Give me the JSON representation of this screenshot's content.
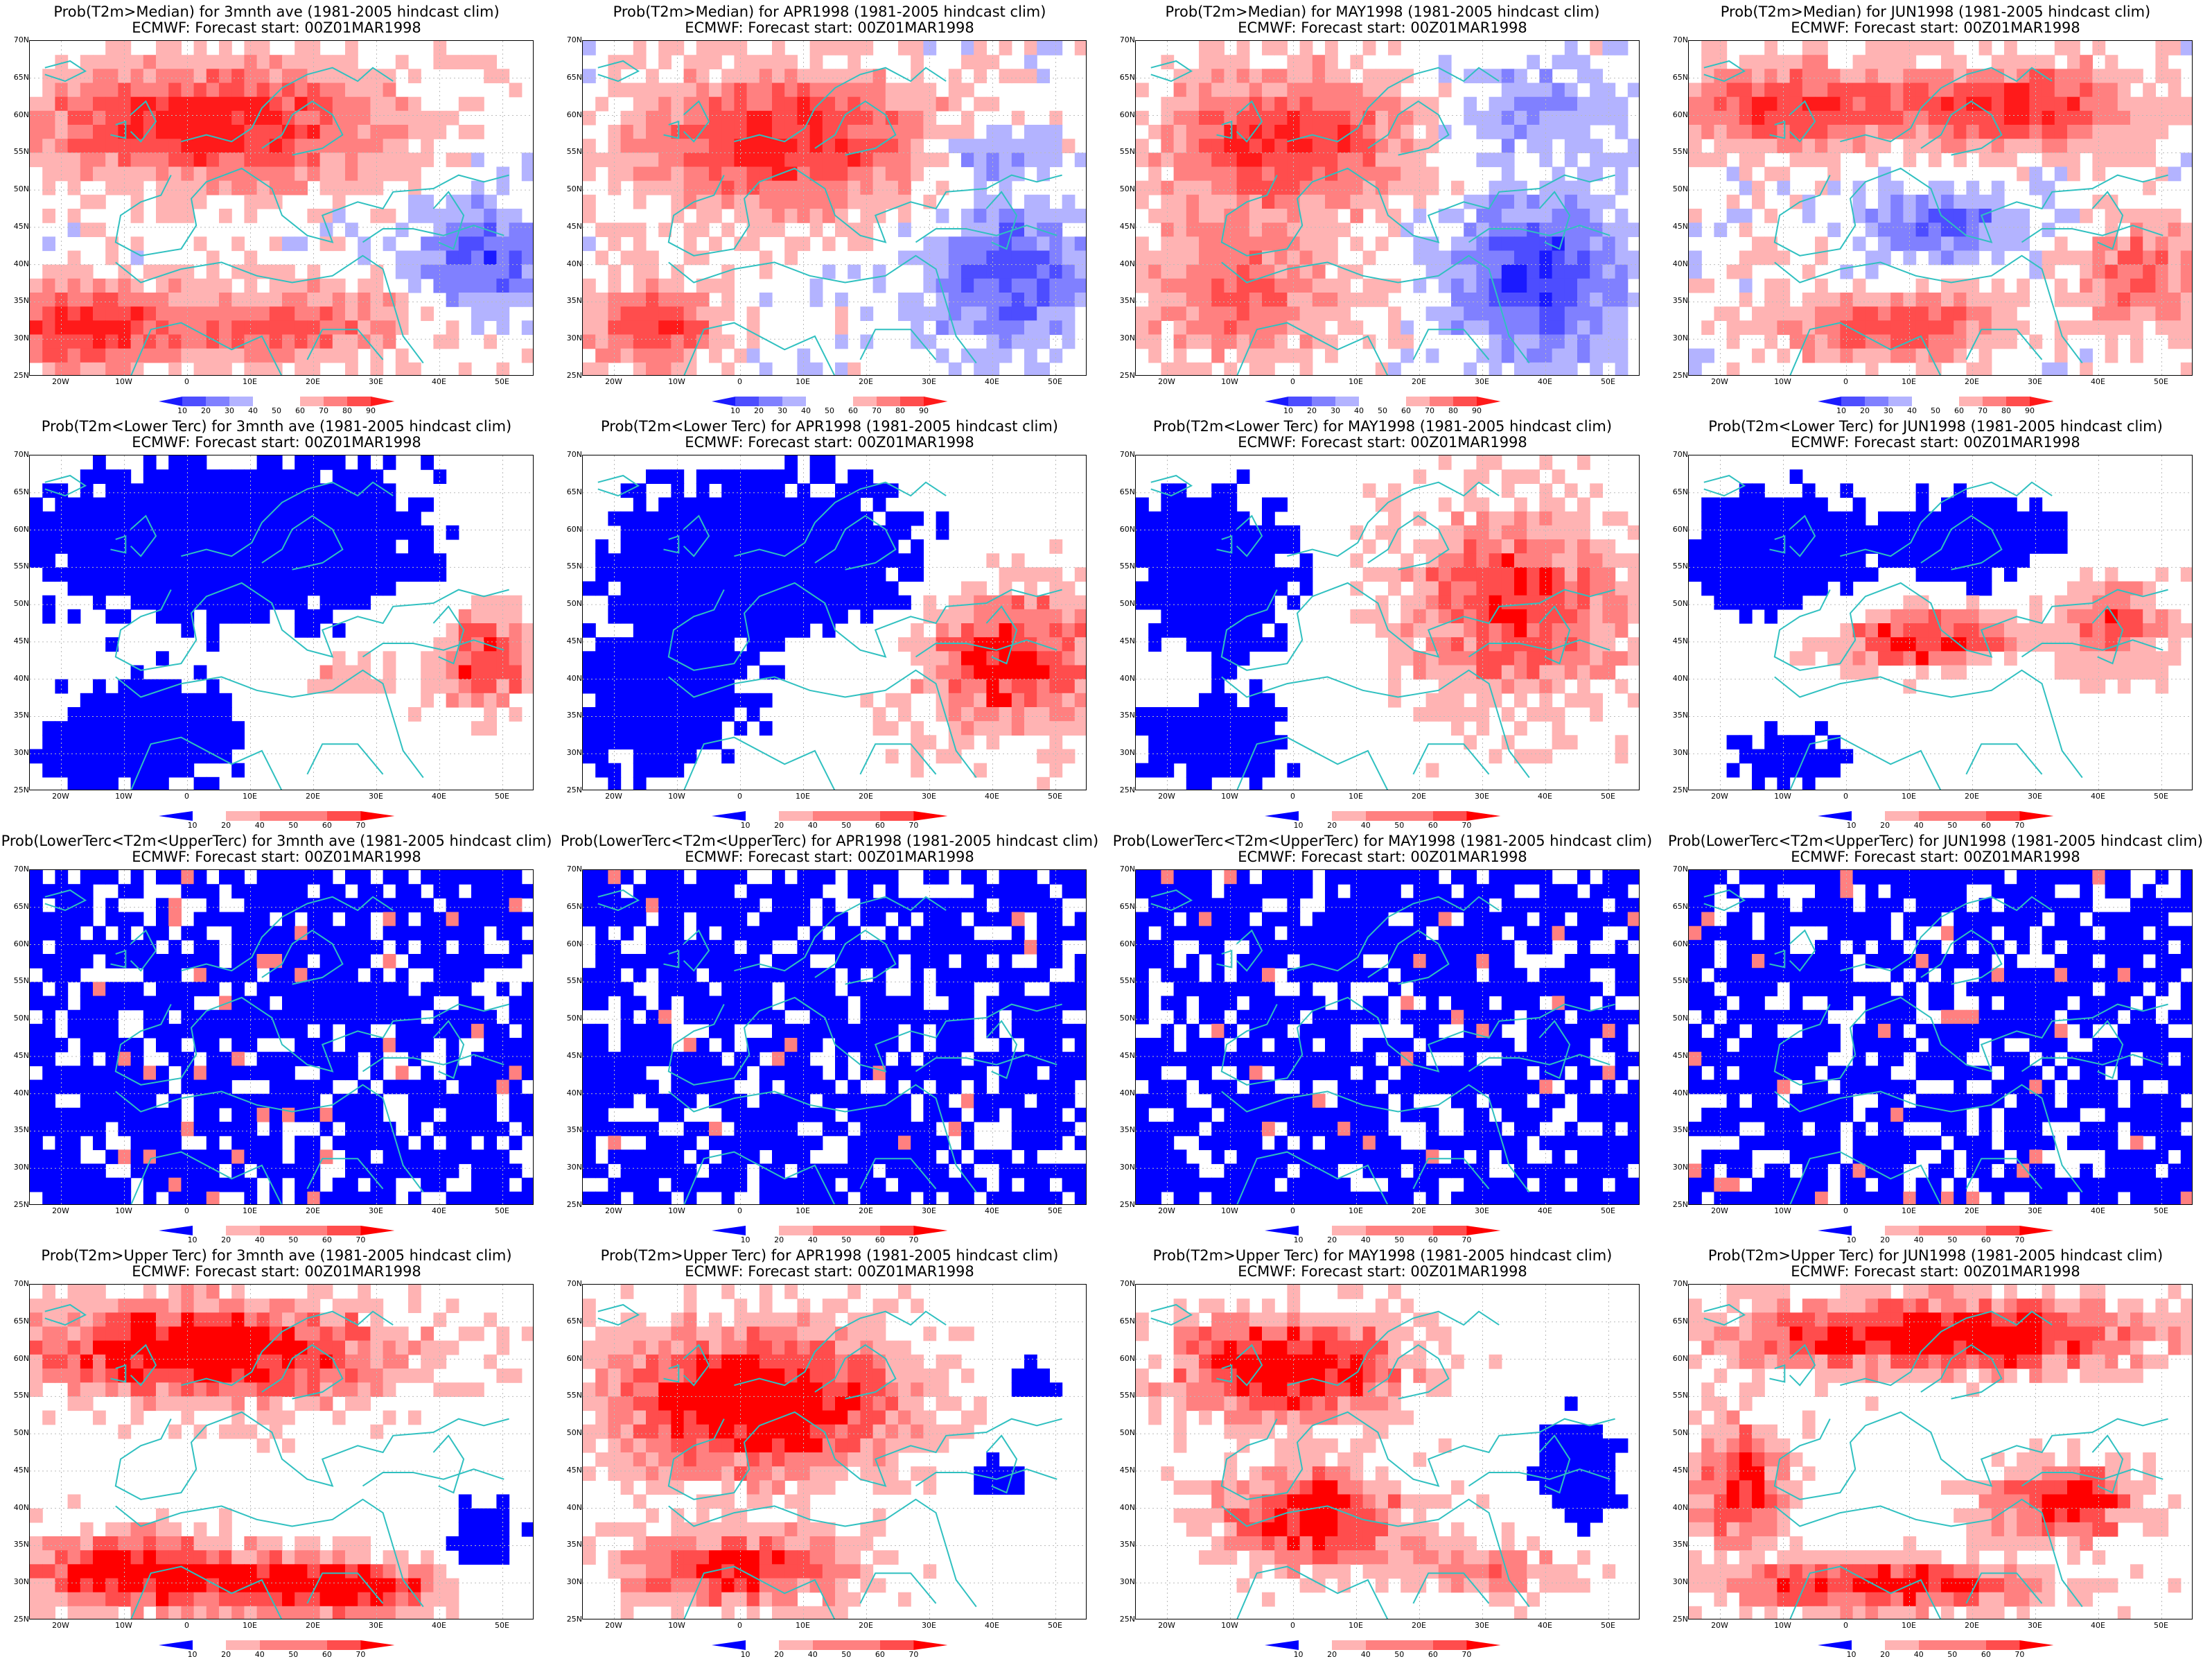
{
  "grid": {
    "rows": [
      {
        "line1_prefix": "Prob(T2m>Median)",
        "scale": "median",
        "colorbar_labels": [
          "10",
          "20",
          "30",
          "40",
          "50",
          "60",
          "70",
          "80",
          "90"
        ]
      },
      {
        "line1_prefix": "Prob(T2m<Lower Terc)",
        "scale": "tercile",
        "colorbar_labels": [
          "10",
          "20",
          "40",
          "50",
          "60",
          "70"
        ]
      },
      {
        "line1_prefix": "Prob(LowerTerc<T2m<UpperTerc)",
        "scale": "tercile",
        "colorbar_labels": [
          "10",
          "20",
          "40",
          "50",
          "60",
          "70"
        ]
      },
      {
        "line1_prefix": "Prob(T2m>Upper Terc)",
        "scale": "tercile",
        "colorbar_labels": [
          "10",
          "20",
          "40",
          "50",
          "60",
          "70"
        ]
      }
    ],
    "periods": [
      "for 3mnth ave (1981-2005 hindcast clim)",
      "for APR1998 (1981-2005 hindcast clim)",
      "for MAY1998 (1981-2005 hindcast clim)",
      "for JUN1998 (1981-2005 hindcast clim)"
    ],
    "subtitle": "ECMWF: Forecast start: 00Z01MAR1998"
  },
  "axes": {
    "lat_labels": [
      "70N",
      "65N",
      "60N",
      "55N",
      "50N",
      "45N",
      "40N",
      "35N",
      "30N",
      "25N"
    ],
    "lon_labels": [
      "20W",
      "10W",
      "0",
      "10E",
      "20E",
      "30E",
      "40E",
      "50E"
    ],
    "lat_range": [
      25,
      70
    ],
    "lon_range": [
      -25,
      55
    ]
  },
  "colors": {
    "median_scale": [
      "#1a1aff",
      "#4d4dff",
      "#8080ff",
      "#b3b3ff",
      "#ffffff",
      "#ffb3b3",
      "#ff8080",
      "#ff4d4d",
      "#ff1a1a"
    ],
    "tercile_scale": [
      "#0000ff",
      "#ffffff",
      "#ffb3b3",
      "#ff8080",
      "#ff4d4d",
      "#ff0000"
    ],
    "coastline": "#30c0c0",
    "gridline": "#bbbbbb"
  },
  "panels": [
    {
      "row": 0,
      "col": 0,
      "dominant": "warm",
      "pattern": "warm-north-cool-east"
    },
    {
      "row": 0,
      "col": 1,
      "dominant": "warm",
      "pattern": "warm-center-cool-southeast"
    },
    {
      "row": 0,
      "col": 2,
      "dominant": "warm",
      "pattern": "warm-west-cool-east"
    },
    {
      "row": 0,
      "col": 3,
      "dominant": "warm",
      "pattern": "warm-rim-cool-center"
    },
    {
      "row": 1,
      "col": 0,
      "dominant": "cold",
      "pattern": "blue-north-red-east"
    },
    {
      "row": 1,
      "col": 1,
      "dominant": "cold",
      "pattern": "blue-center-red-southeast"
    },
    {
      "row": 1,
      "col": 2,
      "dominant": "mixed",
      "pattern": "blue-west-red-east"
    },
    {
      "row": 1,
      "col": 3,
      "dominant": "mixed",
      "pattern": "blue-rim-red-center"
    },
    {
      "row": 2,
      "col": 0,
      "dominant": "cold",
      "pattern": "blue-speckled"
    },
    {
      "row": 2,
      "col": 1,
      "dominant": "cold",
      "pattern": "blue-speckled"
    },
    {
      "row": 2,
      "col": 2,
      "dominant": "cold",
      "pattern": "blue-speckled"
    },
    {
      "row": 2,
      "col": 3,
      "dominant": "cold",
      "pattern": "blue-speckled"
    },
    {
      "row": 3,
      "col": 0,
      "dominant": "warm",
      "pattern": "red-north-white-center"
    },
    {
      "row": 3,
      "col": 1,
      "dominant": "warm",
      "pattern": "red-center-blue-east"
    },
    {
      "row": 3,
      "col": 2,
      "dominant": "warm",
      "pattern": "red-west-white-east"
    },
    {
      "row": 3,
      "col": 3,
      "dominant": "warm",
      "pattern": "red-rim-white-center"
    }
  ]
}
